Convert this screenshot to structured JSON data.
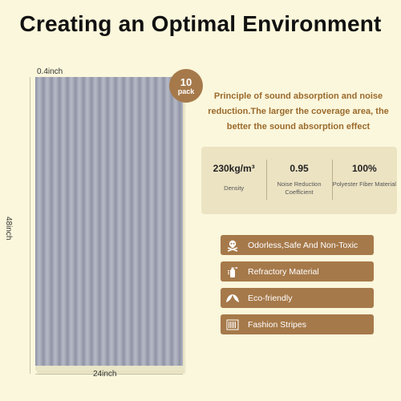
{
  "title": "Creating an Optimal Environment",
  "product": {
    "thickness": "0.4inch",
    "height": "48inch",
    "width": "24inch",
    "badge": {
      "count": "10",
      "unit": "pack"
    }
  },
  "principle": "Principle of sound absorption and noise reduction.The larger the coverage area, the better the sound absorption effect",
  "specs": [
    {
      "value": "230kg/m³",
      "label": "Density"
    },
    {
      "value": "0.95",
      "label": "Noise Reduction Coefficient"
    },
    {
      "value": "100%",
      "label": "Polyester Fiber Material"
    }
  ],
  "features": [
    {
      "label": "Odorless,Safe And Non-Toxic",
      "icon": "skull-crossbones-icon"
    },
    {
      "label": "Refractory Material",
      "icon": "fire-extinguisher-icon"
    },
    {
      "label": "Eco-friendly",
      "icon": "leaf-icon"
    },
    {
      "label": "Fashion Stripes",
      "icon": "stripes-icon"
    }
  ],
  "colors": {
    "background": "#fbf7dc",
    "accent": "#a6794a",
    "text_accent": "#9b6a2c",
    "spec_card": "#ece3c3"
  }
}
